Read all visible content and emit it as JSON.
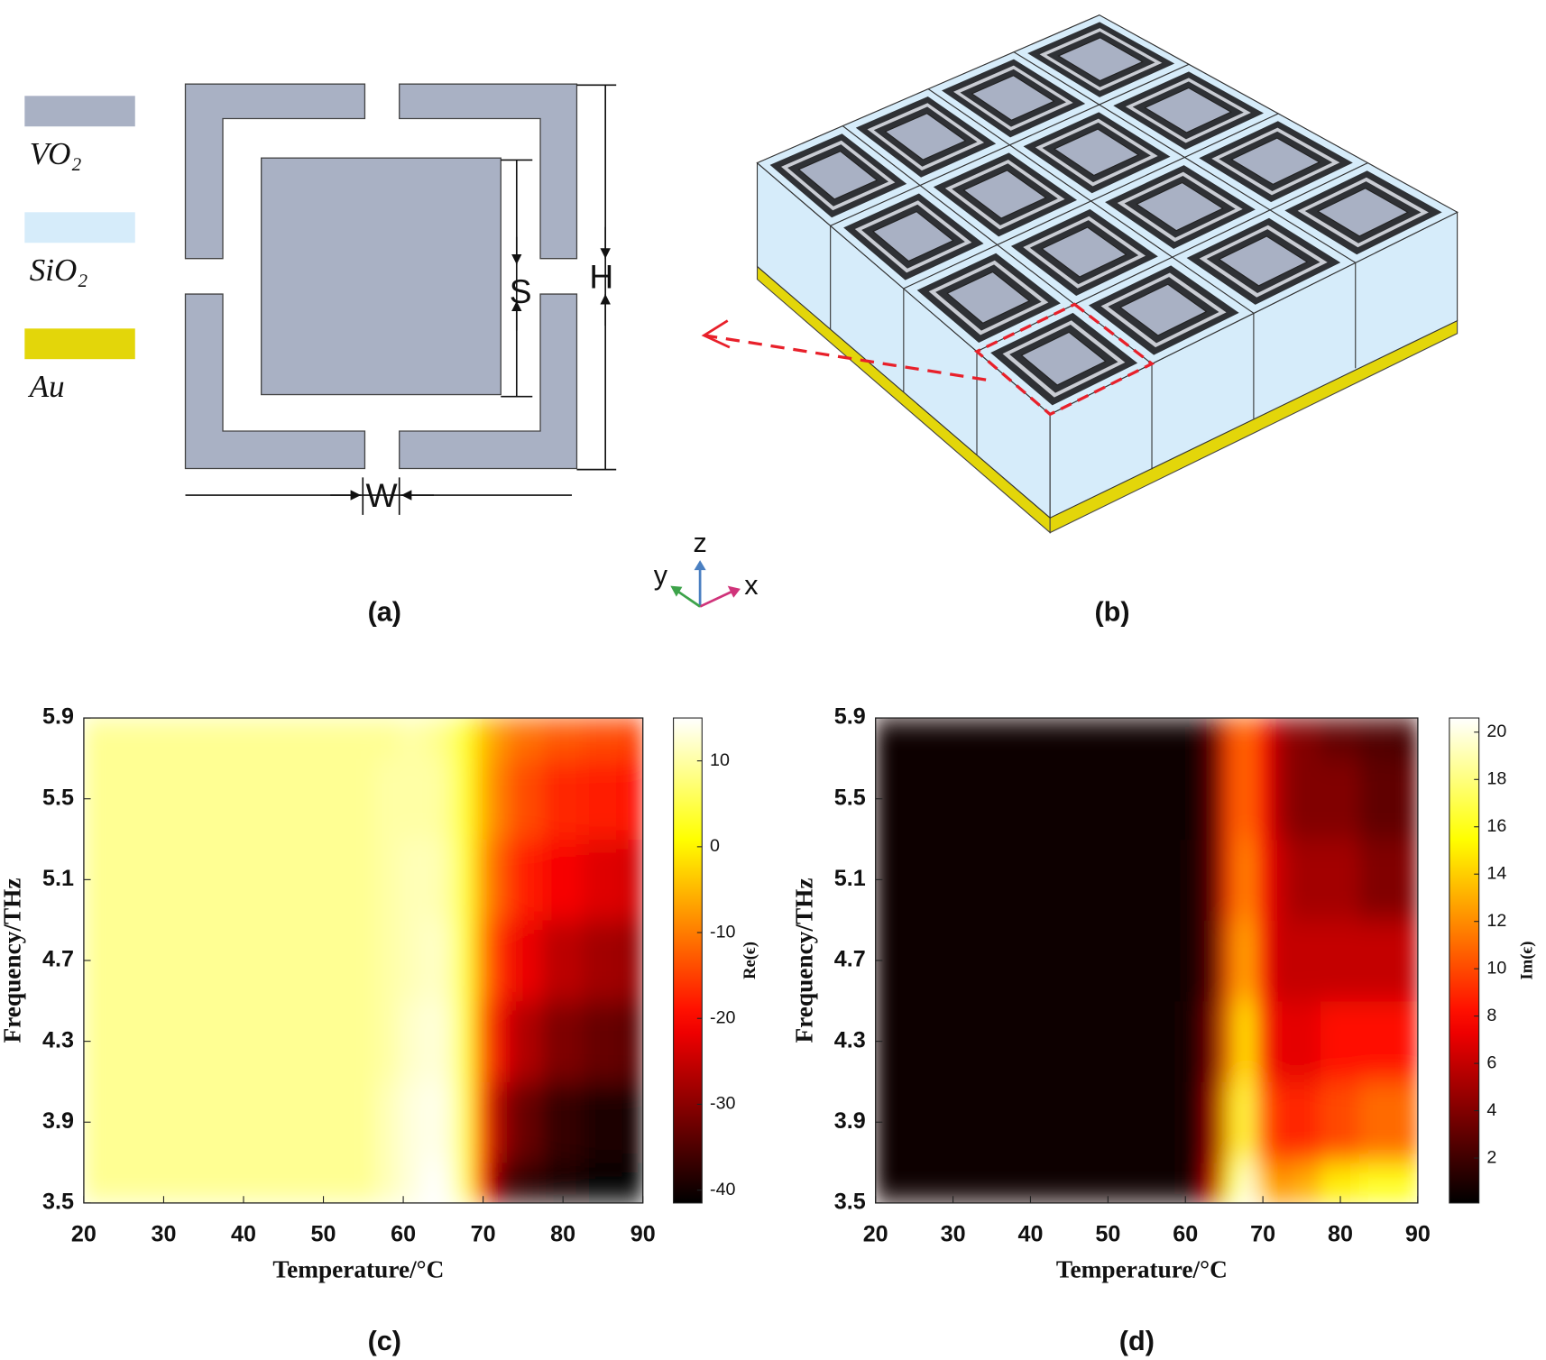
{
  "panel_labels": [
    "(a)",
    "(b)"
  ],
  "legend": [
    {
      "label": "VO₂",
      "color": "#a9b1c4"
    },
    {
      "label": "SiO₂",
      "color": "#d6ecfa"
    },
    {
      "label": "Au",
      "color": "#e3d60a"
    }
  ],
  "dimension_labels": [
    "S",
    "H",
    "W"
  ],
  "axes_icon": [
    "z",
    "y",
    "x"
  ],
  "chart_data": [
    {
      "type": "heatmap",
      "panel_label": "(c)",
      "xlabel": "Temperature/°C",
      "ylabel": "Frequency/THz",
      "colorbar_label": "Re(ϵ)",
      "colormap": "hot",
      "x": [
        20,
        30,
        40,
        50,
        55,
        58,
        61,
        64,
        66,
        68,
        70,
        72,
        75,
        80,
        85,
        90
      ],
      "y": [
        3.5,
        3.9,
        4.3,
        4.7,
        5.1,
        5.5,
        5.9
      ],
      "values": [
        [
          9,
          9,
          9,
          9,
          9,
          11,
          13,
          15,
          13,
          5,
          -20,
          -34,
          -38,
          -40,
          -41,
          -42
        ],
        [
          9,
          9,
          9,
          9,
          9,
          11,
          13,
          14,
          12,
          4,
          -15,
          -28,
          -33,
          -37,
          -39,
          -40
        ],
        [
          9,
          9,
          9,
          9,
          9,
          10,
          12,
          13,
          11,
          3,
          -12,
          -22,
          -27,
          -31,
          -33,
          -34
        ],
        [
          9,
          9,
          9,
          9,
          9,
          10,
          11,
          12,
          10,
          3,
          -9,
          -17,
          -22,
          -26,
          -28,
          -29
        ],
        [
          9,
          9,
          9,
          9,
          9,
          10,
          11,
          11,
          9,
          3,
          -7,
          -13,
          -18,
          -21,
          -23,
          -24
        ],
        [
          9,
          9,
          9,
          9,
          9,
          10,
          10,
          10,
          8,
          2,
          -5,
          -10,
          -14,
          -17,
          -18,
          -19
        ],
        [
          9,
          9,
          9,
          9,
          9,
          9,
          10,
          9,
          7,
          2,
          -4,
          -8,
          -11,
          -13,
          -14,
          -15
        ]
      ],
      "xlim": [
        20,
        90
      ],
      "ylim": [
        3.5,
        5.9
      ],
      "xticks": [
        20,
        30,
        40,
        50,
        60,
        70,
        80,
        90
      ],
      "yticks": [
        3.5,
        3.9,
        4.3,
        4.7,
        5.1,
        5.5,
        5.9
      ],
      "clim": [
        -41.5,
        15
      ],
      "cticks": [
        10,
        0,
        -10,
        -20,
        -30,
        -40
      ]
    },
    {
      "type": "heatmap",
      "panel_label": "(d)",
      "xlabel": "Temperature/°C",
      "ylabel": "Frequency/THz",
      "colorbar_label": "Im(ϵ)",
      "colormap": "hot",
      "x": [
        20,
        30,
        40,
        50,
        55,
        58,
        61,
        64,
        66,
        68,
        70,
        72,
        75,
        80,
        85,
        90
      ],
      "y": [
        3.5,
        3.9,
        4.3,
        4.7,
        5.1,
        5.5,
        5.9
      ],
      "values": [
        [
          0.3,
          0.3,
          0.3,
          0.3,
          0.3,
          0.4,
          1,
          6,
          16,
          20,
          14,
          12,
          13,
          15,
          16,
          16
        ],
        [
          0.3,
          0.3,
          0.3,
          0.3,
          0.3,
          0.4,
          1,
          5,
          14,
          17,
          11,
          9,
          9,
          10,
          11,
          11
        ],
        [
          0.3,
          0.3,
          0.3,
          0.3,
          0.3,
          0.4,
          1,
          4,
          12,
          15,
          9,
          7,
          7,
          8,
          8,
          8
        ],
        [
          0.3,
          0.3,
          0.3,
          0.3,
          0.3,
          0.3,
          0.8,
          3,
          11,
          13,
          8,
          6,
          6,
          6,
          6,
          6
        ],
        [
          0.3,
          0.3,
          0.3,
          0.3,
          0.3,
          0.3,
          0.7,
          3,
          10,
          12,
          8,
          6,
          5,
          5,
          4,
          4
        ],
        [
          0.3,
          0.3,
          0.3,
          0.3,
          0.3,
          0.3,
          0.6,
          3,
          10,
          11,
          8,
          5,
          4,
          4,
          3,
          3
        ],
        [
          0.3,
          0.3,
          0.3,
          0.3,
          0.3,
          0.3,
          0.5,
          3,
          10,
          11,
          8,
          5,
          4,
          3,
          2.5,
          2
        ]
      ],
      "xlim": [
        20,
        90
      ],
      "ylim": [
        3.5,
        5.9
      ],
      "xticks": [
        20,
        30,
        40,
        50,
        60,
        70,
        80,
        90
      ],
      "yticks": [
        3.5,
        3.9,
        4.3,
        4.7,
        5.1,
        5.5,
        5.9
      ],
      "clim": [
        0.1,
        20.6
      ],
      "cticks": [
        2,
        4,
        6,
        8,
        10,
        12,
        14,
        16,
        18,
        20
      ]
    }
  ]
}
